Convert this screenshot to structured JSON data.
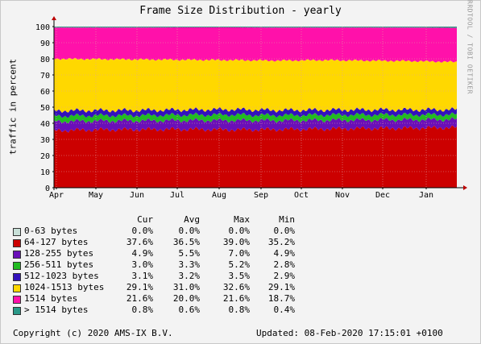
{
  "chart_data": {
    "type": "area",
    "stacked": true,
    "title": "Frame Size Distribution - yearly",
    "ylabel": "traffic in percent",
    "ylim": [
      0,
      100
    ],
    "yticks": [
      0,
      10,
      20,
      30,
      40,
      50,
      60,
      70,
      80,
      90,
      100
    ],
    "x_months": [
      "Apr",
      "May",
      "Jun",
      "Jul",
      "Aug",
      "Sep",
      "Oct",
      "Nov",
      "Dec",
      "Jan"
    ],
    "grid": true,
    "series": [
      {
        "name": "0-63 bytes",
        "color": "#c8e0d8",
        "values": [
          0.0,
          0.0,
          0.0,
          0.0,
          0.0,
          0.0,
          0.0,
          0.0,
          0.0,
          0.0
        ]
      },
      {
        "name": "64-127 bytes",
        "color": "#cc0000",
        "values": [
          35.5,
          36.0,
          36.2,
          36.3,
          36.0,
          36.2,
          36.5,
          36.8,
          37.0,
          37.4
        ]
      },
      {
        "name": "128-255 bytes",
        "color": "#6a0fb8",
        "values": [
          5.6,
          5.5,
          5.4,
          5.5,
          5.8,
          5.5,
          5.4,
          5.3,
          5.2,
          5.0
        ]
      },
      {
        "name": "256-511 bytes",
        "color": "#22bb22",
        "values": [
          3.4,
          3.3,
          3.3,
          3.4,
          3.5,
          3.2,
          3.3,
          3.2,
          3.1,
          3.0
        ]
      },
      {
        "name": "512-1023 bytes",
        "color": "#3311bb",
        "values": [
          3.3,
          3.2,
          3.2,
          3.2,
          3.3,
          3.2,
          3.1,
          3.1,
          3.1,
          3.1
        ]
      },
      {
        "name": "1024-1513 bytes",
        "color": "#ffd800",
        "values": [
          32.2,
          31.8,
          31.5,
          31.0,
          30.6,
          30.8,
          30.9,
          30.5,
          30.2,
          29.5
        ]
      },
      {
        "name": "1514 bytes",
        "color": "#ff11aa",
        "values": [
          19.4,
          19.6,
          19.8,
          20.1,
          20.3,
          20.5,
          20.2,
          20.5,
          20.8,
          21.2
        ]
      },
      {
        "name": "> 1514 bytes",
        "color": "#2a9988",
        "values": [
          0.6,
          0.6,
          0.6,
          0.5,
          0.5,
          0.6,
          0.6,
          0.6,
          0.6,
          0.8
        ]
      }
    ]
  },
  "legend": {
    "headers": {
      "cur": "Cur",
      "avg": "Avg",
      "max": "Max",
      "min": "Min"
    },
    "rows": [
      {
        "label": "0-63 bytes",
        "color": "#c8e0d8",
        "cur": "0.0%",
        "avg": "0.0%",
        "max": "0.0%",
        "min": "0.0%"
      },
      {
        "label": "64-127 bytes",
        "color": "#cc0000",
        "cur": "37.6%",
        "avg": "36.5%",
        "max": "39.0%",
        "min": "35.2%"
      },
      {
        "label": "128-255 bytes",
        "color": "#6a0fb8",
        "cur": "4.9%",
        "avg": "5.5%",
        "max": "7.0%",
        "min": "4.9%"
      },
      {
        "label": "256-511 bytes",
        "color": "#22bb22",
        "cur": "3.0%",
        "avg": "3.3%",
        "max": "5.2%",
        "min": "2.8%"
      },
      {
        "label": "512-1023 bytes",
        "color": "#3311bb",
        "cur": "3.1%",
        "avg": "3.2%",
        "max": "3.5%",
        "min": "2.9%"
      },
      {
        "label": "1024-1513 bytes",
        "color": "#ffd800",
        "cur": "29.1%",
        "avg": "31.0%",
        "max": "32.6%",
        "min": "29.1%"
      },
      {
        "label": "1514 bytes",
        "color": "#ff11aa",
        "cur": "21.6%",
        "avg": "20.0%",
        "max": "21.6%",
        "min": "18.7%"
      },
      {
        "label": "> 1514 bytes",
        "color": "#2a9988",
        "cur": "0.8%",
        "avg": "0.6%",
        "max": "0.8%",
        "min": "0.4%"
      }
    ]
  },
  "vertical_text": "RRDTOOL / TOBI OETIKER",
  "footer": {
    "copyright": "Copyright (c) 2020 AMS-IX B.V.",
    "updated": "Updated: 08-Feb-2020 17:15:01 +0100"
  }
}
